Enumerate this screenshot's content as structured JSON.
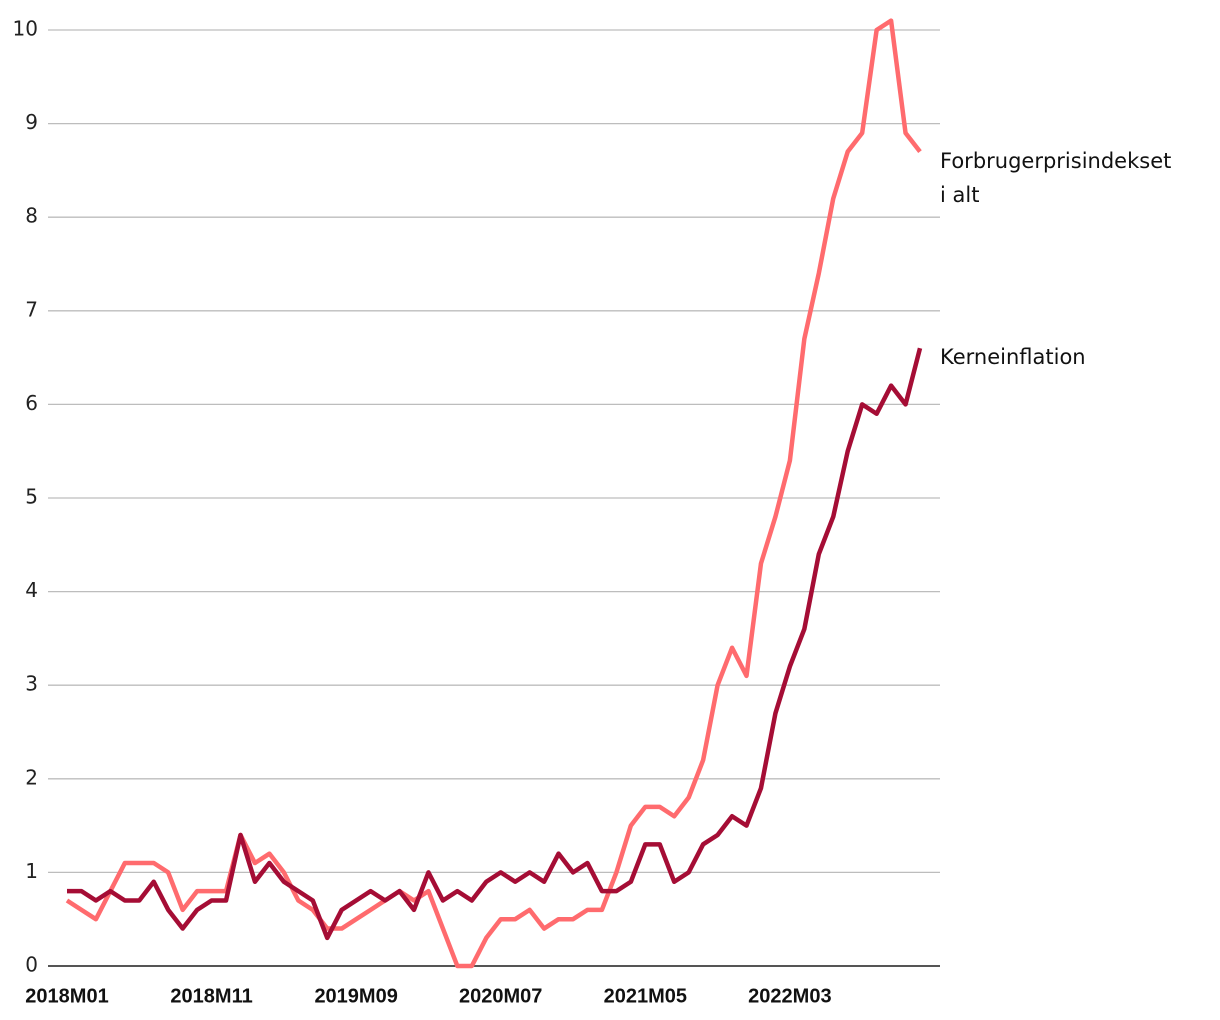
{
  "chart_data": {
    "type": "line",
    "categories": [
      "2018M01",
      null,
      null,
      null,
      null,
      null,
      null,
      null,
      null,
      null,
      "2018M11",
      null,
      null,
      null,
      null,
      null,
      null,
      null,
      null,
      null,
      "2019M09",
      null,
      null,
      null,
      null,
      null,
      null,
      null,
      null,
      null,
      "2020M07",
      null,
      null,
      null,
      null,
      null,
      null,
      null,
      null,
      null,
      "2021M05",
      null,
      null,
      null,
      null,
      null,
      null,
      null,
      null,
      null,
      "2022M03",
      null,
      null,
      null,
      null,
      null,
      null,
      null,
      null,
      null
    ],
    "series": [
      {
        "name": "Forbrugerprisindekset i alt",
        "color": "#ff6b6e",
        "values": [
          0.7,
          0.6,
          0.5,
          0.8,
          1.1,
          1.1,
          1.1,
          1.0,
          0.6,
          0.8,
          0.8,
          0.8,
          1.4,
          1.1,
          1.2,
          1.0,
          0.7,
          0.6,
          0.4,
          0.4,
          0.5,
          0.6,
          0.7,
          0.8,
          0.7,
          0.8,
          0.4,
          0.0,
          0.0,
          0.3,
          0.5,
          0.5,
          0.6,
          0.4,
          0.5,
          0.5,
          0.6,
          0.6,
          1.0,
          1.5,
          1.7,
          1.7,
          1.6,
          1.8,
          2.2,
          3.0,
          3.4,
          3.1,
          4.3,
          4.8,
          5.4,
          6.7,
          7.4,
          8.2,
          8.7,
          8.9,
          10.0,
          10.1,
          8.9,
          8.7
        ]
      },
      {
        "name": "Kerneinflation",
        "color": "#a50d35",
        "values": [
          0.8,
          0.8,
          0.7,
          0.8,
          0.7,
          0.7,
          0.9,
          0.6,
          0.4,
          0.6,
          0.7,
          0.7,
          1.4,
          0.9,
          1.1,
          0.9,
          0.8,
          0.7,
          0.3,
          0.6,
          0.7,
          0.8,
          0.7,
          0.8,
          0.6,
          1.0,
          0.7,
          0.8,
          0.7,
          0.9,
          1.0,
          0.9,
          1.0,
          0.9,
          1.2,
          1.0,
          1.1,
          0.8,
          0.8,
          0.9,
          1.3,
          1.3,
          0.9,
          1.0,
          1.3,
          1.4,
          1.6,
          1.5,
          1.9,
          2.7,
          3.2,
          3.6,
          4.4,
          4.8,
          5.5,
          6.0,
          5.9,
          6.2,
          6.0,
          6.6
        ]
      }
    ],
    "ylim": [
      0,
      10
    ],
    "yticks": [
      0,
      1,
      2,
      3,
      4,
      5,
      6,
      7,
      8,
      9,
      10
    ],
    "grid": true
  }
}
